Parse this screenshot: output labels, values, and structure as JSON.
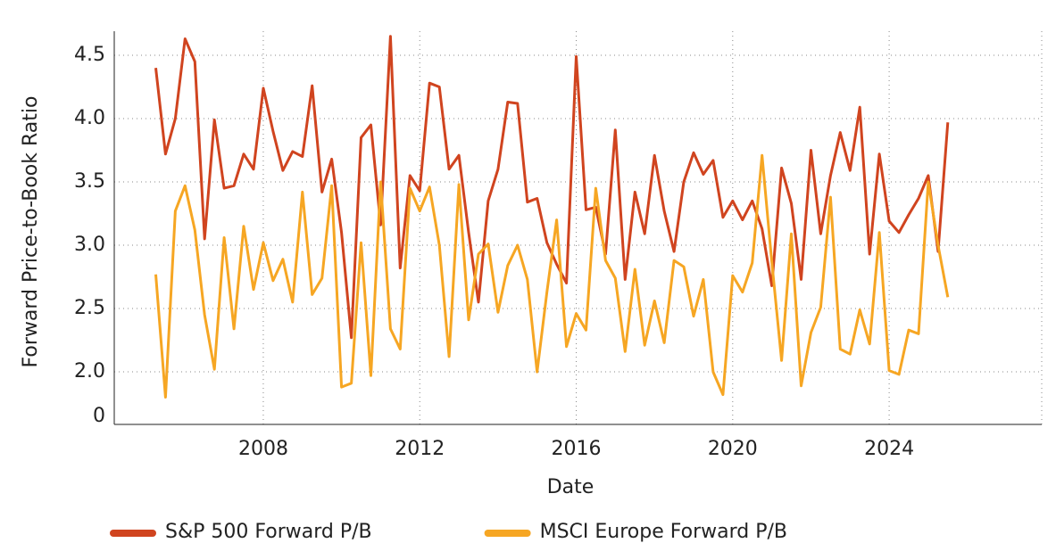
{
  "chart_data": {
    "type": "line",
    "x_label": "Date",
    "y_label": "Forward Price-to-Book Ratio",
    "x": [
      2005.25,
      2005.5,
      2005.75,
      2006,
      2006.25,
      2006.5,
      2006.75,
      2007,
      2007.25,
      2007.5,
      2007.75,
      2008,
      2008.25,
      2008.5,
      2008.75,
      2009,
      2009.25,
      2009.5,
      2009.75,
      2010,
      2010.25,
      2010.5,
      2010.75,
      2011,
      2011.25,
      2011.5,
      2011.75,
      2012,
      2012.25,
      2012.5,
      2012.75,
      2013,
      2013.25,
      2013.5,
      2013.75,
      2014,
      2014.25,
      2014.5,
      2014.75,
      2015,
      2015.25,
      2015.5,
      2015.75,
      2016,
      2016.25,
      2016.5,
      2016.75,
      2017,
      2017.25,
      2017.5,
      2017.75,
      2018,
      2018.25,
      2018.5,
      2018.75,
      2019,
      2019.25,
      2019.5,
      2019.75,
      2020,
      2020.25,
      2020.5,
      2020.75,
      2021,
      2021.25,
      2021.5,
      2021.75,
      2022,
      2022.25,
      2022.5,
      2022.75,
      2023,
      2023.25,
      2023.5,
      2023.75,
      2024,
      2024.25,
      2024.5,
      2024.75,
      2025,
      2025.25,
      2025.5
    ],
    "series": [
      {
        "name": "S&P 500 Forward P/B",
        "color": "#d0441f",
        "values": [
          4.4,
          3.72,
          4.0,
          4.63,
          4.45,
          3.05,
          3.99,
          3.45,
          3.47,
          3.72,
          3.6,
          4.24,
          3.9,
          3.59,
          3.74,
          3.7,
          4.26,
          3.42,
          3.68,
          3.1,
          2.27,
          3.85,
          3.95,
          3.16,
          4.65,
          2.82,
          3.55,
          3.43,
          4.28,
          4.25,
          3.6,
          3.71,
          3.1,
          2.55,
          3.35,
          3.6,
          4.13,
          4.12,
          3.34,
          3.37,
          3.02,
          2.85,
          2.7,
          4.49,
          3.28,
          3.3,
          2.93,
          3.91,
          2.73,
          3.42,
          3.09,
          3.71,
          3.27,
          2.95,
          3.5,
          3.73,
          3.56,
          3.67,
          3.22,
          3.35,
          3.2,
          3.35,
          3.13,
          2.68,
          3.61,
          3.33,
          2.73,
          3.75,
          3.09,
          3.55,
          3.89,
          3.59,
          4.09,
          2.93,
          3.72,
          3.19,
          3.1,
          3.24,
          3.37,
          3.55,
          2.95,
          3.97
        ]
      },
      {
        "name": "MSCI Europe Forward P/B",
        "color": "#f6a623",
        "values": [
          2.77,
          1.8,
          3.27,
          3.47,
          3.12,
          2.45,
          2.02,
          3.06,
          2.34,
          3.15,
          2.65,
          3.02,
          2.72,
          2.89,
          2.55,
          3.42,
          2.61,
          2.74,
          3.47,
          1.88,
          1.91,
          3.02,
          1.97,
          3.5,
          2.34,
          2.18,
          3.45,
          3.27,
          3.46,
          3.0,
          2.12,
          3.48,
          2.41,
          2.93,
          3.01,
          2.47,
          2.84,
          3.0,
          2.73,
          2.0,
          2.63,
          3.2,
          2.2,
          2.46,
          2.33,
          3.45,
          2.88,
          2.74,
          2.16,
          2.81,
          2.21,
          2.56,
          2.23,
          2.88,
          2.83,
          2.44,
          2.73,
          2.0,
          1.82,
          2.76,
          2.63,
          2.86,
          3.71,
          2.87,
          2.09,
          3.09,
          1.89,
          2.31,
          2.51,
          3.38,
          2.18,
          2.14,
          2.49,
          2.22,
          3.1,
          2.01,
          1.98,
          2.33,
          2.3,
          3.5,
          3.0,
          2.59
        ]
      }
    ],
    "xlim": [
      2004.19,
      2027.9
    ],
    "xticks": [
      2008,
      2012,
      2016,
      2020,
      2024
    ],
    "ylim": [
      1.585,
      4.69
    ],
    "yticks": [
      0,
      {
        "value": 2.0,
        "label": "2.0"
      },
      2.5,
      {
        "value": 3.0,
        "label": "3.0"
      },
      3.5,
      {
        "value": 4.0,
        "label": "4.0"
      },
      4.5
    ],
    "grid": true,
    "legend": "bottom"
  }
}
